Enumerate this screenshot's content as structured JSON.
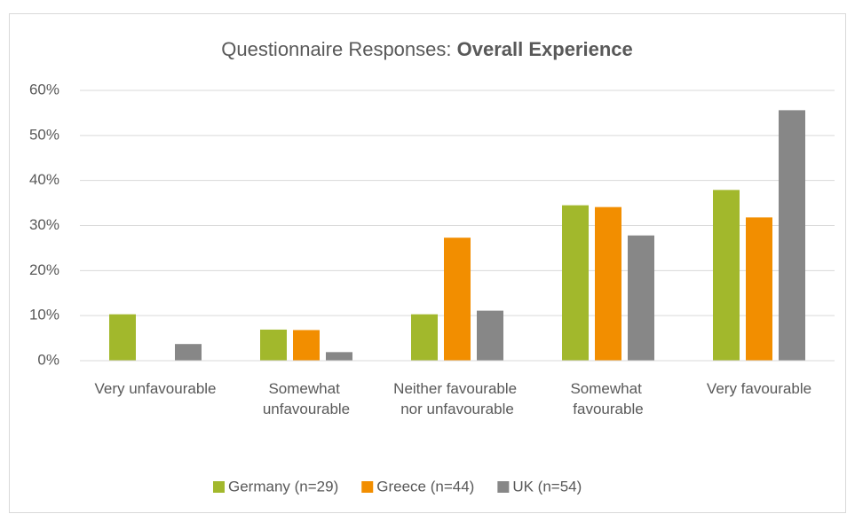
{
  "chart_data": {
    "type": "bar",
    "title": [
      "Questionnaire Responses:",
      "Overall Experience"
    ],
    "categories": [
      "Very unfavourable",
      "Somewhat unfavourable",
      "Neither favourable nor unfavourable",
      "Somewhat favourable",
      "Very favourable"
    ],
    "series": [
      {
        "name": "Germany (n=29)",
        "color": "#a2b82c",
        "values": [
          10.3,
          6.9,
          10.3,
          34.5,
          37.9
        ]
      },
      {
        "name": "Greece (n=44)",
        "color": "#f28e00",
        "values": [
          0,
          6.8,
          27.3,
          34.1,
          31.8
        ]
      },
      {
        "name": "UK (n=54)",
        "color": "#878787",
        "values": [
          3.7,
          1.9,
          11.1,
          27.8,
          55.6
        ]
      }
    ],
    "ylim": [
      0,
      60
    ],
    "yticks": [
      {
        "value": 0,
        "label": "0%"
      },
      {
        "value": 10,
        "label": "10%"
      },
      {
        "value": 20,
        "label": "20%"
      },
      {
        "value": 30,
        "label": "30%"
      },
      {
        "value": 40,
        "label": "40%"
      },
      {
        "value": 50,
        "label": "50%"
      },
      {
        "value": 60,
        "label": "60%"
      }
    ],
    "grid": true,
    "legend": "bottom"
  }
}
